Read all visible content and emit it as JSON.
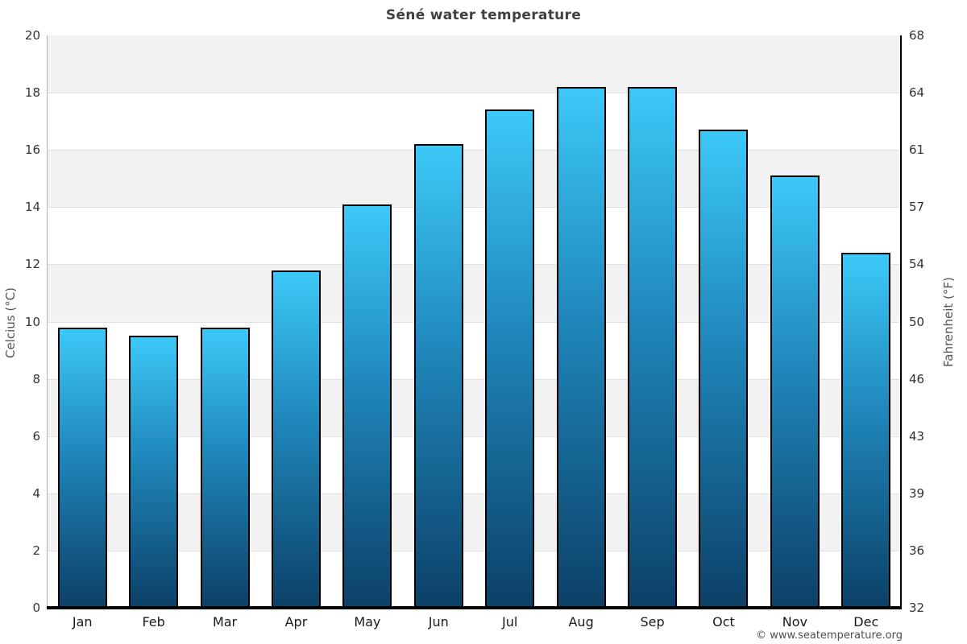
{
  "chart_data": {
    "type": "bar",
    "title": "Séné water temperature",
    "categories": [
      "Jan",
      "Feb",
      "Mar",
      "Apr",
      "May",
      "Jun",
      "Jul",
      "Aug",
      "Sep",
      "Oct",
      "Nov",
      "Dec"
    ],
    "values": [
      9.8,
      9.5,
      9.8,
      11.8,
      14.1,
      16.2,
      17.4,
      18.2,
      18.2,
      16.7,
      15.1,
      12.4
    ],
    "xlabel": "",
    "ylabel_left": "Celcius (°C)",
    "ylabel_right": "Fahrenheit (°F)",
    "ylim": [
      0,
      20
    ],
    "yticks_left": [
      0,
      2,
      4,
      6,
      8,
      10,
      12,
      14,
      16,
      18,
      20
    ],
    "yticks_right": [
      32,
      36,
      39,
      43,
      46,
      50,
      54,
      57,
      61,
      64,
      68
    ],
    "grid": "alternating horizontal bands every 2°C",
    "legend_position": "none",
    "colors": {
      "bar_gradient_top": "#3cc9f8",
      "bar_gradient_mid": "#1f86ba",
      "bar_gradient_bottom": "#0c4067",
      "band_gray": "#f2f2f2",
      "bar_border": "#000000"
    }
  },
  "footer": {
    "credit": "© www.seatemperature.org"
  }
}
